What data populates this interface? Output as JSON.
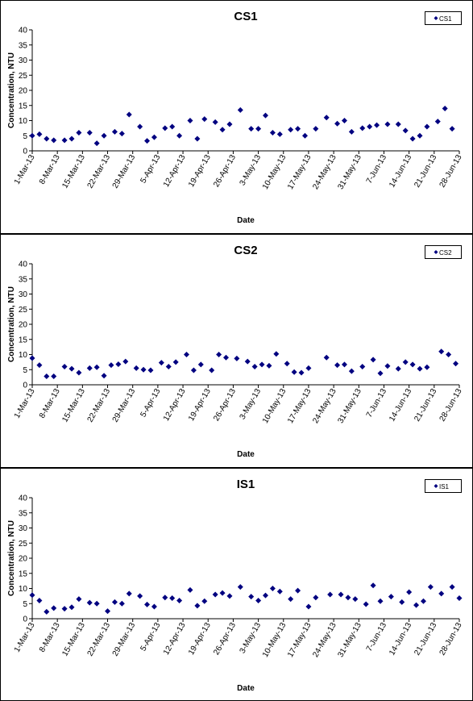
{
  "chart_data": [
    {
      "type": "scatter",
      "title": "CS1",
      "x_label": "Date",
      "y_label": "Concentration, NTU",
      "x": [
        "1-Mar-13",
        "3-Mar-13",
        "5-Mar-13",
        "7-Mar-13",
        "10-Mar-13",
        "12-Mar-13",
        "14-Mar-13",
        "17-Mar-13",
        "19-Mar-13",
        "21-Mar-13",
        "24-Mar-13",
        "26-Mar-13",
        "28-Mar-13",
        "31-Mar-13",
        "2-Apr-13",
        "4-Apr-13",
        "7-Apr-13",
        "9-Apr-13",
        "11-Apr-13",
        "14-Apr-13",
        "16-Apr-13",
        "18-Apr-13",
        "21-Apr-13",
        "23-Apr-13",
        "25-Apr-13",
        "28-Apr-13",
        "1-May-13",
        "3-May-13",
        "5-May-13",
        "7-May-13",
        "9-May-13",
        "12-May-13",
        "14-May-13",
        "16-May-13",
        "19-May-13",
        "22-May-13",
        "25-May-13",
        "27-May-13",
        "29-May-13",
        "1-Jun-13",
        "3-Jun-13",
        "5-Jun-13",
        "8-Jun-13",
        "11-Jun-13",
        "13-Jun-13",
        "15-Jun-13",
        "17-Jun-13",
        "19-Jun-13",
        "22-Jun-13",
        "24-Jun-13",
        "26-Jun-13"
      ],
      "series": [
        {
          "name": "CS1",
          "color": "#000080",
          "values": [
            5,
            5.5,
            4,
            3.5,
            3.5,
            4,
            6,
            6,
            2.5,
            5,
            6.3,
            5.7,
            12,
            8,
            3.3,
            4.5,
            7.5,
            8,
            5,
            10,
            4,
            10.5,
            9.5,
            7,
            8.8,
            13.5,
            7.3,
            7.3,
            11.7,
            6,
            5.5,
            7,
            7.3,
            5,
            7.3,
            11,
            9,
            10,
            6.3,
            7.5,
            8,
            8.5,
            8.8,
            8.8,
            6.7,
            4,
            5,
            8,
            9.7,
            14,
            7.3
          ]
        }
      ],
      "xlim": [
        "1-Mar-13",
        "28-Jun-13"
      ],
      "xticks": [
        "1-Mar-13",
        "8-Mar-13",
        "15-Mar-13",
        "22-Mar-13",
        "29-Mar-13",
        "5-Apr-13",
        "12-Apr-13",
        "19-Apr-13",
        "26-Apr-13",
        "3-May-13",
        "10-May-13",
        "17-May-13",
        "24-May-13",
        "31-May-13",
        "7-Jun-13",
        "14-Jun-13",
        "21-Jun-13",
        "28-Jun-13"
      ],
      "ylim": [
        0,
        40
      ],
      "yticks": [
        0,
        5,
        10,
        15,
        20,
        25,
        30,
        35,
        40
      ],
      "grid": false,
      "legend": "top-right"
    },
    {
      "type": "scatter",
      "title": "CS2",
      "x_label": "Date",
      "y_label": "Concentration, NTU",
      "x": [
        "1-Mar-13",
        "3-Mar-13",
        "5-Mar-13",
        "7-Mar-13",
        "10-Mar-13",
        "12-Mar-13",
        "14-Mar-13",
        "17-Mar-13",
        "19-Mar-13",
        "21-Mar-13",
        "23-Mar-13",
        "25-Mar-13",
        "27-Mar-13",
        "30-Mar-13",
        "1-Apr-13",
        "3-Apr-13",
        "6-Apr-13",
        "8-Apr-13",
        "10-Apr-13",
        "13-Apr-13",
        "15-Apr-13",
        "17-Apr-13",
        "20-Apr-13",
        "22-Apr-13",
        "24-Apr-13",
        "27-Apr-13",
        "30-Apr-13",
        "2-May-13",
        "4-May-13",
        "6-May-13",
        "8-May-13",
        "11-May-13",
        "13-May-13",
        "15-May-13",
        "17-May-13",
        "22-May-13",
        "25-May-13",
        "27-May-13",
        "29-May-13",
        "1-Jun-13",
        "4-Jun-13",
        "6-Jun-13",
        "8-Jun-13",
        "11-Jun-13",
        "13-Jun-13",
        "15-Jun-13",
        "17-Jun-13",
        "19-Jun-13",
        "23-Jun-13",
        "25-Jun-13",
        "27-Jun-13"
      ],
      "series": [
        {
          "name": "CS2",
          "color": "#000080",
          "values": [
            8.8,
            6.5,
            2.8,
            2.8,
            6,
            5.3,
            4,
            5.5,
            5.8,
            3,
            6.5,
            6.8,
            7.7,
            5.5,
            5,
            4.8,
            7.3,
            6,
            7.5,
            10,
            4.8,
            6.7,
            4.8,
            10,
            9,
            8.7,
            7.7,
            6,
            6.7,
            6.3,
            10.2,
            7,
            4.2,
            4,
            5.5,
            9,
            6.5,
            6.7,
            4.5,
            6,
            8.3,
            3.8,
            6.2,
            5.3,
            7.5,
            6.7,
            5.3,
            5.8,
            11,
            10,
            7
          ]
        }
      ],
      "xlim": [
        "1-Mar-13",
        "28-Jun-13"
      ],
      "xticks": [
        "1-Mar-13",
        "8-Mar-13",
        "15-Mar-13",
        "22-Mar-13",
        "29-Mar-13",
        "5-Apr-13",
        "12-Apr-13",
        "19-Apr-13",
        "26-Apr-13",
        "3-May-13",
        "10-May-13",
        "17-May-13",
        "24-May-13",
        "31-May-13",
        "7-Jun-13",
        "14-Jun-13",
        "21-Jun-13",
        "28-Jun-13"
      ],
      "ylim": [
        0,
        40
      ],
      "yticks": [
        0,
        5,
        10,
        15,
        20,
        25,
        30,
        35,
        40
      ],
      "grid": false,
      "legend": "top-right"
    },
    {
      "type": "scatter",
      "title": "IS1",
      "x_label": "Date",
      "y_label": "Concentration, NTU",
      "x": [
        "1-Mar-13",
        "3-Mar-13",
        "5-Mar-13",
        "7-Mar-13",
        "10-Mar-13",
        "12-Mar-13",
        "14-Mar-13",
        "17-Mar-13",
        "19-Mar-13",
        "22-Mar-13",
        "24-Mar-13",
        "26-Mar-13",
        "28-Mar-13",
        "31-Mar-13",
        "2-Apr-13",
        "4-Apr-13",
        "7-Apr-13",
        "9-Apr-13",
        "11-Apr-13",
        "14-Apr-13",
        "16-Apr-13",
        "18-Apr-13",
        "21-Apr-13",
        "23-Apr-13",
        "25-Apr-13",
        "28-Apr-13",
        "1-May-13",
        "3-May-13",
        "5-May-13",
        "7-May-13",
        "9-May-13",
        "12-May-13",
        "14-May-13",
        "17-May-13",
        "19-May-13",
        "23-May-13",
        "26-May-13",
        "28-May-13",
        "30-May-13",
        "2-Jun-13",
        "4-Jun-13",
        "6-Jun-13",
        "9-Jun-13",
        "12-Jun-13",
        "14-Jun-13",
        "16-Jun-13",
        "18-Jun-13",
        "20-Jun-13",
        "23-Jun-13",
        "26-Jun-13",
        "28-Jun-13"
      ],
      "series": [
        {
          "name": "IS1",
          "color": "#000080",
          "values": [
            7.8,
            6,
            2.3,
            3.5,
            3.3,
            3.8,
            6.5,
            5.3,
            5,
            2.5,
            5.5,
            5,
            8.3,
            7.5,
            4.7,
            4,
            7,
            6.8,
            6,
            9.5,
            4.3,
            5.8,
            8,
            8.5,
            7.5,
            10.5,
            7.3,
            6,
            7.7,
            10,
            9,
            6.5,
            9.3,
            4,
            7,
            8,
            8,
            7,
            6.5,
            4.8,
            11,
            5.8,
            7.3,
            5.5,
            8.8,
            4.5,
            5.8,
            10.5,
            8.3,
            10.5,
            6.8
          ]
        }
      ],
      "xlim": [
        "1-Mar-13",
        "28-Jun-13"
      ],
      "xticks": [
        "1-Mar-13",
        "8-Mar-13",
        "15-Mar-13",
        "22-Mar-13",
        "29-Mar-13",
        "5-Apr-13",
        "12-Apr-13",
        "19-Apr-13",
        "26-Apr-13",
        "3-May-13",
        "10-May-13",
        "17-May-13",
        "24-May-13",
        "31-May-13",
        "7-Jun-13",
        "14-Jun-13",
        "21-Jun-13",
        "28-Jun-13"
      ],
      "ylim": [
        0,
        40
      ],
      "yticks": [
        0,
        5,
        10,
        15,
        20,
        25,
        30,
        35,
        40
      ],
      "grid": false,
      "legend": "top-right"
    }
  ]
}
